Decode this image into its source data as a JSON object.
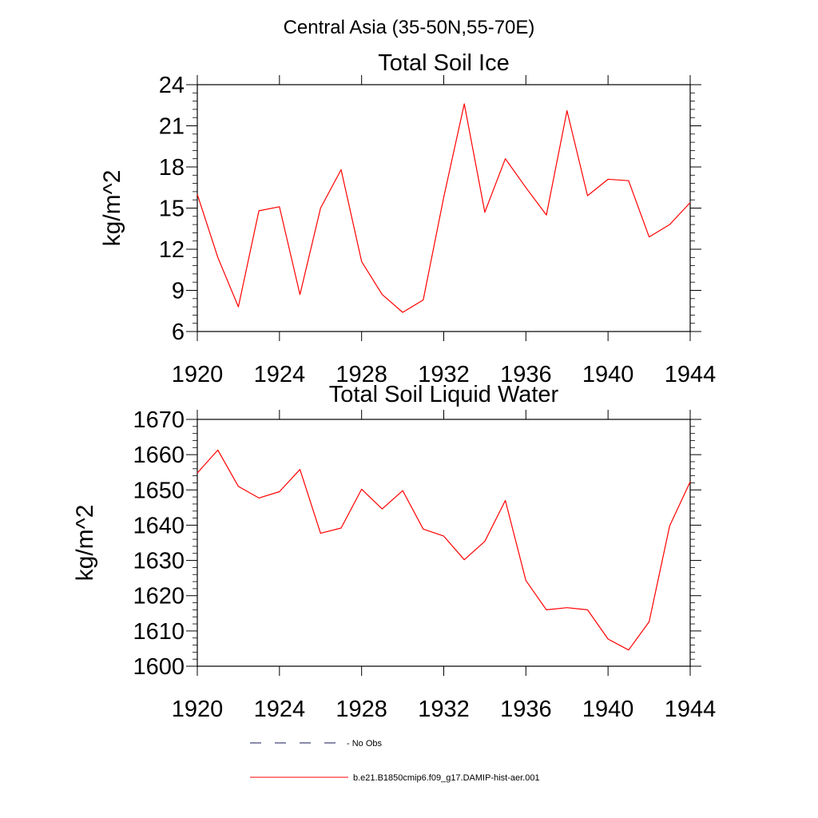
{
  "figure_title": "Central Asia (35-50N,55-70E)",
  "legend": {
    "obs_label": "- No Obs",
    "model_label": "b.e21.B1850cmip6.f09_g17.DAMIP-hist-aer.001",
    "obs_color": "#44447a",
    "model_color": "#ff0000"
  },
  "chart_data": [
    {
      "type": "line",
      "title": "Total Soil Ice",
      "xlabel": "",
      "ylabel": "kg/m^2",
      "xlim": [
        1920,
        1944
      ],
      "ylim": [
        6,
        24
      ],
      "xticks": [
        1920,
        1924,
        1928,
        1932,
        1936,
        1940,
        1944
      ],
      "yticks": [
        6,
        9,
        12,
        15,
        18,
        21,
        24
      ],
      "x": [
        1920,
        1921,
        1922,
        1923,
        1924,
        1925,
        1926,
        1927,
        1928,
        1929,
        1930,
        1931,
        1932,
        1933,
        1934,
        1935,
        1936,
        1937,
        1938,
        1939,
        1940,
        1941,
        1942,
        1943,
        1944
      ],
      "series": [
        {
          "name": "b.e21.B1850cmip6.f09_g17.DAMIP-hist-aer.001",
          "color": "#ff0000",
          "values": [
            16.0,
            11.4,
            7.8,
            14.8,
            15.1,
            8.7,
            15.0,
            17.8,
            11.1,
            8.7,
            7.4,
            8.3,
            15.8,
            22.6,
            14.7,
            18.6,
            16.5,
            14.5,
            22.1,
            15.9,
            17.1,
            17.0,
            12.9,
            13.8,
            15.4
          ]
        }
      ]
    },
    {
      "type": "line",
      "title": "Total Soil Liquid Water",
      "xlabel": "",
      "ylabel": "kg/m^2",
      "xlim": [
        1920,
        1944
      ],
      "ylim": [
        1600,
        1670
      ],
      "xticks": [
        1920,
        1924,
        1928,
        1932,
        1936,
        1940,
        1944
      ],
      "yticks": [
        1600,
        1610,
        1620,
        1630,
        1640,
        1650,
        1660,
        1670
      ],
      "x": [
        1920,
        1921,
        1922,
        1923,
        1924,
        1925,
        1926,
        1927,
        1928,
        1929,
        1930,
        1931,
        1932,
        1933,
        1934,
        1935,
        1936,
        1937,
        1938,
        1939,
        1940,
        1941,
        1942,
        1943,
        1944
      ],
      "series": [
        {
          "name": "b.e21.B1850cmip6.f09_g17.DAMIP-hist-aer.001",
          "color": "#ff0000",
          "values": [
            1654.8,
            1661.3,
            1651.0,
            1647.7,
            1649.5,
            1655.8,
            1637.7,
            1639.2,
            1650.2,
            1644.6,
            1649.8,
            1638.9,
            1636.9,
            1630.2,
            1635.4,
            1647.0,
            1624.3,
            1616.0,
            1616.6,
            1616.0,
            1607.7,
            1604.6,
            1612.6,
            1639.8,
            1652.3
          ]
        }
      ]
    }
  ]
}
